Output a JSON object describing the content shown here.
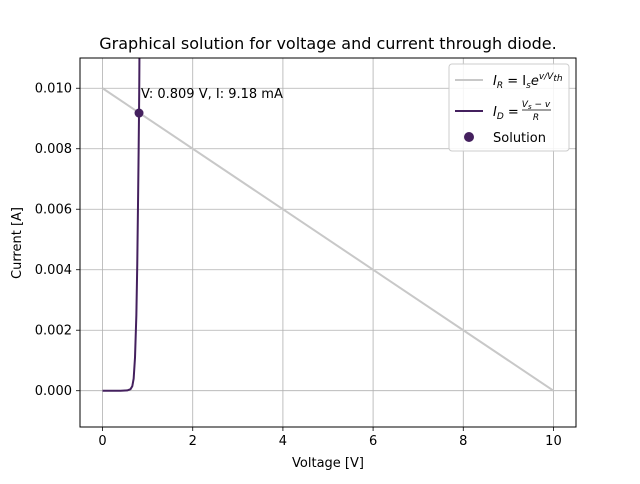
{
  "chart_data": {
    "type": "line",
    "title": "Graphical solution for voltage and current through diode.",
    "xlabel": "Voltage [V]",
    "ylabel": "Current [A]",
    "xlim": [
      -0.5,
      10.5
    ],
    "ylim": [
      -0.0012,
      0.011
    ],
    "xticks": [
      0,
      2,
      4,
      6,
      8,
      10
    ],
    "xtick_labels": [
      "0",
      "2",
      "4",
      "6",
      "8",
      "10"
    ],
    "yticks": [
      0.0,
      0.002,
      0.004,
      0.006,
      0.008,
      0.01
    ],
    "ytick_labels": [
      "0.000",
      "0.002",
      "0.004",
      "0.006",
      "0.008",
      "0.010"
    ],
    "grid": true,
    "legend_position": "top-right",
    "series": [
      {
        "name": "I_R = I_s e^{v/V_th}",
        "color": "#c8c8c8",
        "style": "line",
        "x": [
          0,
          10
        ],
        "y": [
          0.01,
          0.0
        ]
      },
      {
        "name": "I_D = (V_s - v)/R",
        "color": "#44205e",
        "style": "line",
        "x": [
          0.0,
          0.4,
          0.55,
          0.62,
          0.66,
          0.69,
          0.72,
          0.75,
          0.77,
          0.79,
          0.8,
          0.809,
          0.815,
          0.82
        ],
        "y": [
          0.0,
          0.0,
          1e-05,
          5e-05,
          0.00015,
          0.0004,
          0.0011,
          0.0025,
          0.0042,
          0.0066,
          0.0079,
          0.00918,
          0.0102,
          0.0115
        ]
      },
      {
        "name": "Solution",
        "color": "#44205e",
        "style": "marker",
        "x": [
          0.809
        ],
        "y": [
          0.00918
        ]
      }
    ],
    "annotations": [
      {
        "text": "V: 0.809 V, I: 9.18 mA",
        "x": 0.809,
        "y": 0.00918
      }
    ]
  },
  "legend": {
    "entry1": {
      "base": "I",
      "sub": "R",
      "eq": " = I",
      "sub2": "s",
      "tail": "e",
      "sup": "v/V",
      "supsub": "th"
    },
    "entry2": {
      "base": "I",
      "sub": "D",
      "eq": " = ",
      "num": "V",
      "numsub": "s",
      "numtail": " − v",
      "den": "R"
    },
    "entry3": {
      "label": "Solution"
    }
  }
}
